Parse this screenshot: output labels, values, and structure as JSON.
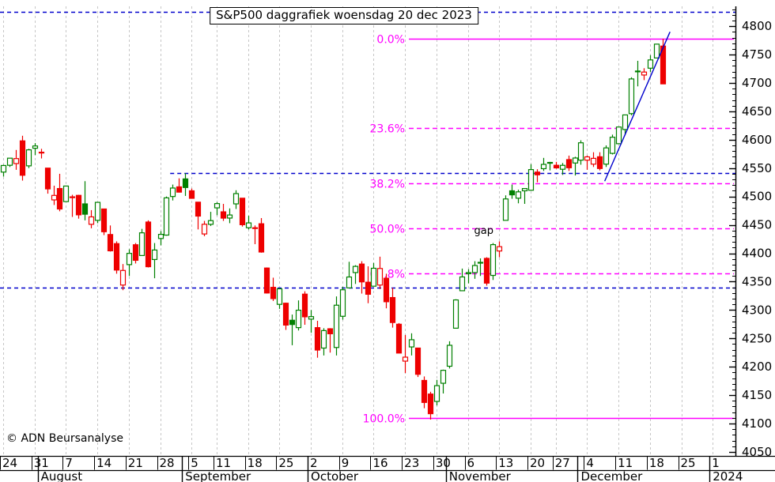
{
  "title": "S&P500 daggrafiek woensdag 20 dec 2023",
  "copyright": "© ADN Beursanalyse",
  "colors": {
    "up": "#008000",
    "down": "#ee0000",
    "fib": "#ff00ff",
    "line_blue": "#0000cc",
    "grid": "#c6c6c6",
    "axis": "#000000",
    "background": "#ffffff"
  },
  "chart_data": {
    "type": "candlestick",
    "title": "S&P500 daggrafiek woensdag 20 dec 2023",
    "ylabel": "",
    "xlabel": "",
    "ylim": [
      4043,
      4835
    ],
    "y_ticks": {
      "major_start": 4050,
      "major_end": 4800,
      "major_step": 50,
      "minor_step": 10
    },
    "prev_close": 4536.3,
    "candles": [
      [
        "Jul 24",
        4543,
        4556,
        4535,
        4554.6
      ],
      [
        "Jul 25",
        4555,
        4567.5,
        4552,
        4567.5
      ],
      [
        "Jul 26",
        4558,
        4582,
        4547,
        4566.8
      ],
      [
        "Jul 27",
        4598,
        4607,
        4528,
        4537.4
      ],
      [
        "Jul 28",
        4554,
        4584,
        4550,
        4582.2
      ],
      [
        "Jul 31",
        4585,
        4594,
        4573,
        4589.0
      ],
      [
        "Aug 1",
        4578,
        4584,
        4567,
        4576.7
      ],
      [
        "Aug 2",
        4550,
        4550,
        4505,
        4513.4
      ],
      [
        "Aug 3",
        4494,
        4519,
        4485,
        4501.9
      ],
      [
        "Aug 4",
        4514,
        4540,
        4474,
        4478.0
      ],
      [
        "Aug 7",
        4491,
        4519,
        4491,
        4518.4
      ],
      [
        "Aug 8",
        4498,
        4503,
        4464,
        4499.4
      ],
      [
        "Aug 9",
        4502,
        4503,
        4461,
        4467.7
      ],
      [
        "Aug 10",
        4487,
        4527,
        4458,
        4468.8
      ],
      [
        "Aug 11",
        4451,
        4476,
        4444,
        4464.1
      ],
      [
        "Aug 14",
        4458,
        4490,
        4453,
        4489.7
      ],
      [
        "Aug 15",
        4478,
        4478,
        4432,
        4437.9
      ],
      [
        "Aug 16",
        4433,
        4449,
        4403,
        4404.3
      ],
      [
        "Aug 17",
        4417,
        4421,
        4364,
        4370.4
      ],
      [
        "Aug 18",
        4344,
        4381,
        4335,
        4369.7
      ],
      [
        "Aug 21",
        4380,
        4407,
        4360,
        4399.8
      ],
      [
        "Aug 22",
        4415,
        4418,
        4382,
        4387.6
      ],
      [
        "Aug 23",
        4396,
        4443,
        4396,
        4436.0
      ],
      [
        "Aug 24",
        4455,
        4458,
        4375,
        4376.3
      ],
      [
        "Aug 25",
        4389,
        4418,
        4356,
        4405.7
      ],
      [
        "Aug 28",
        4426,
        4439,
        4414,
        4433.3
      ],
      [
        "Aug 29",
        4432,
        4500,
        4431,
        4497.6
      ],
      [
        "Aug 30",
        4500,
        4521,
        4493,
        4514.9
      ],
      [
        "Aug 31",
        4517,
        4532,
        4507,
        4507.7
      ],
      [
        "Sep 1",
        4531,
        4541,
        4501,
        4515.8
      ],
      [
        "Sep 5",
        4510,
        4514,
        4496,
        4496.8
      ],
      [
        "Sep 6",
        4490,
        4490,
        4442,
        4465.5
      ],
      [
        "Sep 7",
        4434,
        4457,
        4430,
        4451.1
      ],
      [
        "Sep 8",
        4451,
        4473,
        4448,
        4457.5
      ],
      [
        "Sep 11",
        4480,
        4490,
        4467,
        4487.5
      ],
      [
        "Sep 12",
        4473,
        4487,
        4457,
        4461.9
      ],
      [
        "Sep 13",
        4462,
        4479,
        4453,
        4467.4
      ],
      [
        "Sep 14",
        4487,
        4511,
        4478,
        4505.1
      ],
      [
        "Sep 15",
        4497,
        4497,
        4447,
        4450.3
      ],
      [
        "Sep 18",
        4445,
        4466,
        4442,
        4453.5
      ],
      [
        "Sep 19",
        4445,
        4449,
        4416,
        4443.9
      ],
      [
        "Sep 20",
        4452,
        4462,
        4401,
        4402.2
      ],
      [
        "Sep 21",
        4374,
        4375,
        4329,
        4330.0
      ],
      [
        "Sep 22",
        4340,
        4357,
        4316,
        4320.1
      ],
      [
        "Sep 25",
        4310,
        4338,
        4302,
        4337.4
      ],
      [
        "Sep 26",
        4312,
        4313,
        4265,
        4273.5
      ],
      [
        "Sep 27",
        4282,
        4292,
        4238,
        4274.5
      ],
      [
        "Sep 28",
        4269,
        4317,
        4264,
        4299.7
      ],
      [
        "Sep 29",
        4328,
        4333,
        4274,
        4288.1
      ],
      [
        "Oct 2",
        4284,
        4300,
        4260,
        4288.4
      ],
      [
        "Oct 3",
        4269,
        4281,
        4216,
        4229.5
      ],
      [
        "Oct 4",
        4233,
        4268,
        4220,
        4263.8
      ],
      [
        "Oct 5",
        4267,
        4268,
        4225,
        4258.2
      ],
      [
        "Oct 6",
        4234,
        4324,
        4220,
        4308.5
      ],
      [
        "Oct 9",
        4289,
        4341,
        4283,
        4335.7
      ],
      [
        "Oct 10",
        4339,
        4385,
        4339,
        4358.2
      ],
      [
        "Oct 11",
        4366,
        4379,
        4346,
        4376.9
      ],
      [
        "Oct 12",
        4381,
        4386,
        4329,
        4349.6
      ],
      [
        "Oct 13",
        4349,
        4377,
        4312,
        4327.8
      ],
      [
        "Oct 16",
        4342,
        4383,
        4342,
        4373.6
      ],
      [
        "Oct 17",
        4344,
        4394,
        4337,
        4373.2
      ],
      [
        "Oct 18",
        4356,
        4364,
        4303,
        4314.6
      ],
      [
        "Oct 19",
        4322,
        4339,
        4269,
        4278.0
      ],
      [
        "Oct 20",
        4275,
        4277,
        4224,
        4224.2
      ],
      [
        "Oct 23",
        4210,
        4256,
        4189,
        4217.0
      ],
      [
        "Oct 24",
        4235,
        4259,
        4220,
        4247.7
      ],
      [
        "Oct 25",
        4233,
        4233,
        4182,
        4186.8
      ],
      [
        "Oct 26",
        4176,
        4183,
        4127,
        4137.2
      ],
      [
        "Oct 27",
        4152,
        4156,
        4107,
        4117.4
      ],
      [
        "Oct 30",
        4139,
        4177,
        4132,
        4166.8
      ],
      [
        "Oct 31",
        4171,
        4195,
        4153,
        4193.8
      ],
      [
        "Nov 1",
        4201,
        4245,
        4197,
        4237.9
      ],
      [
        "Nov 2",
        4268,
        4319,
        4268,
        4317.8
      ],
      [
        "Nov 3",
        4334,
        4373,
        4334,
        4358.3
      ],
      [
        "Nov 6",
        4364,
        4372,
        4347,
        4366.0
      ],
      [
        "Nov 7",
        4366,
        4386,
        4355,
        4378.4
      ],
      [
        "Nov 8",
        4384,
        4391,
        4360,
        4382.8
      ],
      [
        "Nov 9",
        4391,
        4393,
        4343,
        4347.4
      ],
      [
        "Nov 10",
        4361,
        4418,
        4353,
        4415.2
      ],
      [
        "Nov 13",
        4404,
        4421,
        4393,
        4411.6
      ],
      [
        "Nov 14",
        4458,
        4502,
        4458,
        4495.7
      ],
      [
        "Nov 15",
        4510,
        4521,
        4496,
        4502.9
      ],
      [
        "Nov 16",
        4497,
        4512,
        4488,
        4508.2
      ],
      [
        "Nov 17",
        4510,
        4514,
        4487,
        4514.0
      ],
      [
        "Nov 20",
        4511,
        4557,
        4510,
        4547.4
      ],
      [
        "Nov 21",
        4543,
        4548,
        4525,
        4538.2
      ],
      [
        "Nov 22",
        4549,
        4568,
        4545,
        4556.6
      ],
      [
        "Nov 24",
        4560,
        4561,
        4546,
        4559.3
      ],
      [
        "Nov 27",
        4555,
        4561,
        4549,
        4550.4
      ],
      [
        "Nov 28",
        4548,
        4559,
        4538,
        4554.9
      ],
      [
        "Nov 29",
        4565,
        4572,
        4545,
        4550.6
      ],
      [
        "Nov 30",
        4559,
        4570,
        4537,
        4567.8
      ],
      [
        "Dec 1",
        4564,
        4599,
        4556,
        4594.6
      ],
      [
        "Dec 4",
        4564,
        4572,
        4547,
        4569.8
      ],
      [
        "Dec 5",
        4557,
        4578,
        4552,
        4567.2
      ],
      [
        "Dec 6",
        4570,
        4578,
        4546,
        4549.3
      ],
      [
        "Dec 7",
        4557,
        4590,
        4552,
        4585.6
      ],
      [
        "Dec 8",
        4576,
        4609,
        4574,
        4604.4
      ],
      [
        "Dec 11",
        4593,
        4623,
        4593,
        4622.4
      ],
      [
        "Dec 12",
        4618,
        4644,
        4608,
        4643.7
      ],
      [
        "Dec 13",
        4646,
        4710,
        4643,
        4707.1
      ],
      [
        "Dec 14",
        4721,
        4739,
        4694,
        4719.6
      ],
      [
        "Dec 15",
        4714,
        4726,
        4705,
        4719.2
      ],
      [
        "Dec 18",
        4726,
        4749,
        4719,
        4740.6
      ],
      [
        "Dec 19",
        4744,
        4769,
        4744,
        4768.4
      ],
      [
        "Dec 20",
        4765,
        4778,
        4698,
        4698.4
      ]
    ],
    "week_ticks": [
      {
        "index": 0,
        "label": "24"
      },
      {
        "index": 5,
        "label": "31"
      },
      {
        "index": 10,
        "label": "7"
      },
      {
        "index": 15,
        "label": "14"
      },
      {
        "index": 20,
        "label": "21"
      },
      {
        "index": 25,
        "label": "28"
      },
      {
        "index": 30,
        "label": "5"
      },
      {
        "index": 34,
        "label": "11"
      },
      {
        "index": 39,
        "label": "18"
      },
      {
        "index": 44,
        "label": "25"
      },
      {
        "index": 49,
        "label": "2"
      },
      {
        "index": 54,
        "label": "9"
      },
      {
        "index": 59,
        "label": "16"
      },
      {
        "index": 64,
        "label": "23"
      },
      {
        "index": 69,
        "label": "30"
      },
      {
        "index": 74,
        "label": "6"
      },
      {
        "index": 79,
        "label": "13"
      },
      {
        "index": 84,
        "label": "20"
      },
      {
        "index": 88,
        "label": "27"
      },
      {
        "index": 93,
        "label": "4"
      },
      {
        "index": 98,
        "label": "11"
      },
      {
        "index": 103,
        "label": "18"
      },
      {
        "index": 108,
        "label": "25"
      },
      {
        "index": 113,
        "label": "1"
      }
    ],
    "month_labels": [
      {
        "index": 6,
        "label": "August"
      },
      {
        "index": 29,
        "label": "September"
      },
      {
        "index": 49,
        "label": "October"
      },
      {
        "index": 71,
        "label": "November"
      },
      {
        "index": 92,
        "label": "December"
      },
      {
        "index": 113,
        "label": "2024"
      }
    ],
    "fib_levels": [
      {
        "label": "0.0%",
        "value": 4778,
        "style": "solid"
      },
      {
        "label": "23.6%",
        "value": 4620,
        "style": "dashed"
      },
      {
        "label": "38.2%",
        "value": 4523,
        "style": "dashed"
      },
      {
        "label": "50.0%",
        "value": 4444,
        "style": "dashed"
      },
      {
        "label": "61.8%",
        "value": 4365,
        "style": "dashed"
      },
      {
        "label": "100.0%",
        "value": 4110,
        "style": "solid"
      }
    ],
    "hlines": [
      {
        "name": "ath-resistance",
        "value": 4825,
        "start_index": -0.5
      },
      {
        "name": "sep-high-resistance",
        "value": 4542,
        "start_index": 26.6
      },
      {
        "name": "aug-low-support",
        "value": 4340,
        "start_index": -0.5
      }
    ],
    "trendline": {
      "x1_index": 95.8,
      "value1": 4527,
      "x2_index": 106.2,
      "value2": 4790
    },
    "annotations": [
      {
        "text": "gap",
        "x_index": 75,
        "value": 4434
      }
    ]
  }
}
